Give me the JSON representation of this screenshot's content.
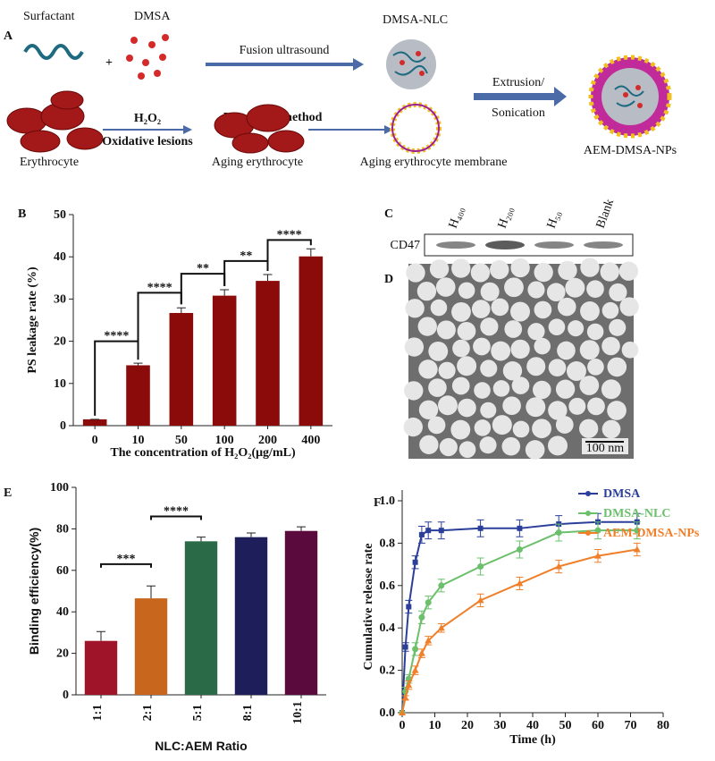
{
  "panel_a": {
    "label": "A",
    "surfactant": "Surfactant",
    "plus": "+",
    "dmsa": "DMSA",
    "dmsa_nlc": "DMSA-NLC",
    "fusion": "Fusion ultrasound",
    "extrusion": "Extrusion/",
    "sonication": "Sonication",
    "product": "AEM-DMSA-NPs",
    "erythrocyte": "Erythrocyte",
    "h2o2": "H₂O₂",
    "oxidative": "Oxidative lesions",
    "aging": "Aging erythrocyte",
    "hypotonic": "Hypotonic method",
    "membrane": "Aging erythrocyte membrane"
  },
  "panel_c": {
    "label": "C",
    "lanes": [
      "H₄₀₀",
      "H₂₀₀",
      "H₅₀",
      "Blank"
    ],
    "protein": "CD47"
  },
  "panel_d": {
    "label": "D",
    "scale_bar": "100 nm"
  },
  "chart_data": [
    {
      "type": "bar",
      "panel": "B",
      "xlabel": "The concentration of H₂O₂(μg/mL)",
      "ylabel": "PS leakage rate (%)",
      "categories": [
        "0",
        "10",
        "50",
        "100",
        "200",
        "400"
      ],
      "values": [
        1.5,
        14.3,
        26.7,
        30.8,
        34.3,
        40.1
      ],
      "errors": [
        0,
        0.5,
        1.2,
        1.4,
        1.5,
        1.8
      ],
      "color": "#8b0a0a",
      "ylim": [
        0,
        50
      ],
      "yticks": [
        0,
        10,
        20,
        30,
        40,
        50
      ],
      "annotations": [
        {
          "label": "****",
          "pair": [
            0,
            1
          ],
          "level": 20
        },
        {
          "label": "****",
          "pair": [
            1,
            2
          ],
          "level": 31.5
        },
        {
          "label": "**",
          "pair": [
            2,
            3
          ],
          "level": 36
        },
        {
          "label": "**",
          "pair": [
            3,
            4
          ],
          "level": 39
        },
        {
          "label": "****",
          "pair": [
            4,
            5
          ],
          "level": 44
        }
      ]
    },
    {
      "type": "bar",
      "panel": "E",
      "xlabel": "NLC:AEM Ratio",
      "ylabel": "Binding efficiency(%)",
      "categories": [
        "1:1",
        "2:1",
        "5:1",
        "8:1",
        "10:1"
      ],
      "values": [
        26,
        46.5,
        74,
        76,
        79
      ],
      "errors": [
        4.5,
        6,
        2,
        2,
        2
      ],
      "colors": [
        "#a0142a",
        "#c8661e",
        "#2a6a46",
        "#1e1e5a",
        "#5a0a3c"
      ],
      "ylim": [
        0,
        100
      ],
      "yticks": [
        0,
        20,
        40,
        60,
        80,
        100
      ],
      "annotations": [
        {
          "label": "***",
          "pair": [
            0,
            1
          ],
          "level": 63
        },
        {
          "label": "****",
          "pair": [
            1,
            2
          ],
          "level": 86
        }
      ]
    },
    {
      "type": "line",
      "panel": "F",
      "xlabel": "Time (h)",
      "ylabel": "Cumulative release rate",
      "x": [
        0,
        1,
        2,
        4,
        6,
        8,
        12,
        24,
        36,
        48,
        60,
        72
      ],
      "xlim": [
        0,
        80
      ],
      "xticks": [
        0,
        10,
        20,
        30,
        40,
        50,
        60,
        70,
        80
      ],
      "ylim": [
        0,
        1
      ],
      "yticks": [
        {
          "value": 0,
          "label": "0.0"
        },
        0.2,
        0.4,
        0.6,
        0.8,
        {
          "value": 1,
          "label": "1.0"
        }
      ],
      "legend": "top-right",
      "series": [
        {
          "name": "DMSA",
          "color": "#2b3f9a",
          "marker": "square",
          "values": [
            0,
            0.31,
            0.5,
            0.71,
            0.84,
            0.86,
            0.86,
            0.87,
            0.87,
            0.89,
            0.9,
            0.9
          ],
          "errors": [
            0,
            0.02,
            0.03,
            0.03,
            0.04,
            0.04,
            0.04,
            0.04,
            0.04,
            0.04,
            0.04,
            0.04
          ]
        },
        {
          "name": "DMSA-NLC",
          "color": "#6cc06c",
          "marker": "circle",
          "values": [
            0,
            0.1,
            0.16,
            0.3,
            0.45,
            0.52,
            0.6,
            0.69,
            0.77,
            0.85,
            0.86,
            0.86
          ],
          "errors": [
            0,
            0.02,
            0.02,
            0.03,
            0.03,
            0.03,
            0.03,
            0.04,
            0.04,
            0.04,
            0.04,
            0.04
          ]
        },
        {
          "name": "AEM-DMSA-NPs",
          "color": "#f07f2a",
          "marker": "triangle",
          "values": [
            0,
            0.07,
            0.13,
            0.2,
            0.28,
            0.34,
            0.4,
            0.53,
            0.61,
            0.69,
            0.74,
            0.77
          ],
          "errors": [
            0,
            0.01,
            0.02,
            0.02,
            0.02,
            0.02,
            0.02,
            0.03,
            0.03,
            0.03,
            0.03,
            0.03
          ]
        }
      ]
    }
  ]
}
